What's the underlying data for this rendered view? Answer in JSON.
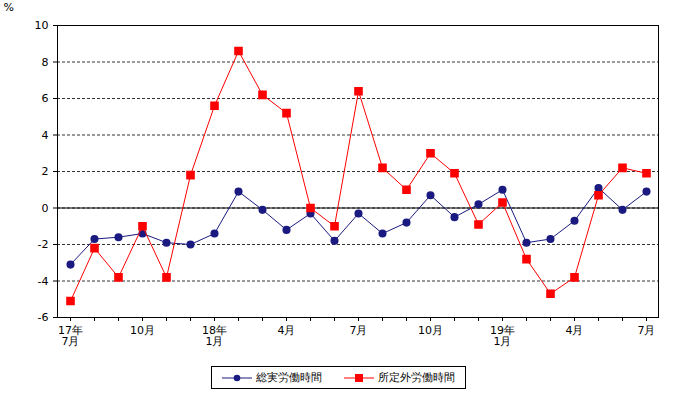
{
  "chart_data": {
    "type": "line",
    "categories": [
      "17年\n7月",
      null,
      null,
      "10月",
      null,
      null,
      "18年\n1月",
      null,
      null,
      "4月",
      null,
      null,
      "7月",
      null,
      null,
      "10月",
      null,
      null,
      "19年\n1月",
      null,
      null,
      "4月",
      null,
      null,
      "7月"
    ],
    "series": [
      {
        "name": "総実労働時間",
        "color": "#1a1a80",
        "marker": "circle",
        "values": [
          -3.1,
          -1.7,
          -1.6,
          -1.4,
          -1.9,
          -2.0,
          -1.4,
          0.9,
          -0.1,
          -1.2,
          -0.3,
          -1.8,
          -0.3,
          -1.4,
          -0.8,
          0.7,
          -0.5,
          0.2,
          1.0,
          -1.9,
          -1.7,
          -0.7,
          1.1,
          -0.1,
          0.9
        ]
      },
      {
        "name": "所定外労働時間",
        "color": "#ff0000",
        "marker": "square",
        "values": [
          -5.1,
          -2.2,
          -3.8,
          -1.0,
          -3.8,
          1.8,
          5.6,
          8.6,
          6.2,
          5.2,
          0.0,
          -1.0,
          6.4,
          2.2,
          1.0,
          3.0,
          1.9,
          -0.9,
          0.3,
          -2.8,
          -4.7,
          -3.8,
          0.7,
          2.2,
          1.9
        ]
      }
    ],
    "y_label": "%",
    "ylim": [
      -6,
      10
    ],
    "yticks": [
      -6,
      -4,
      -2,
      0,
      2,
      4,
      6,
      8,
      10
    ],
    "grid": true,
    "legend": "bottom"
  }
}
